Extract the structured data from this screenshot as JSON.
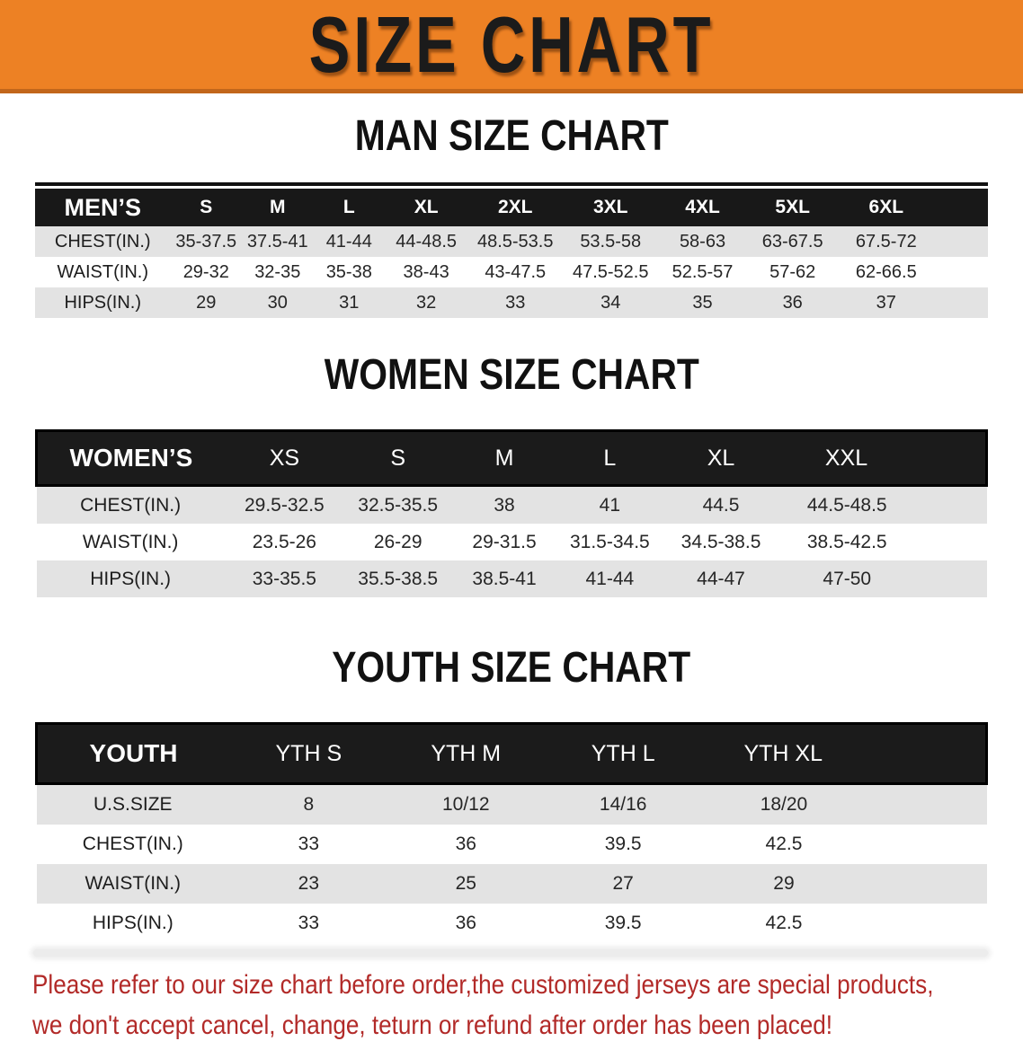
{
  "banner": {
    "title": "SIZE CHART"
  },
  "sections": [
    {
      "heading": "MAN SIZE CHART",
      "table": {
        "label": "MEN’S",
        "columns": [
          "S",
          "M",
          "L",
          "XL",
          "2XL",
          "3XL",
          "4XL",
          "5XL",
          "6XL"
        ],
        "rows": [
          {
            "label": "CHEST(IN.)",
            "values": [
              "35-37.5",
              "37.5-41",
              "41-44",
              "44-48.5",
              "48.5-53.5",
              "53.5-58",
              "58-63",
              "63-67.5",
              "67.5-72"
            ]
          },
          {
            "label": "WAIST(IN.)",
            "values": [
              "29-32",
              "32-35",
              "35-38",
              "38-43",
              "43-47.5",
              "47.5-52.5",
              "52.5-57",
              "57-62",
              "62-66.5"
            ]
          },
          {
            "label": "HIPS(IN.)",
            "values": [
              "29",
              "30",
              "31",
              "32",
              "33",
              "34",
              "35",
              "36",
              "37"
            ]
          }
        ]
      }
    },
    {
      "heading": "WOMEN SIZE CHART",
      "table": {
        "label": "WOMEN’S",
        "columns": [
          "XS",
          "S",
          "M",
          "L",
          "XL",
          "XXL"
        ],
        "rows": [
          {
            "label": "CHEST(IN.)",
            "values": [
              "29.5-32.5",
              "32.5-35.5",
              "38",
              "41",
              "44.5",
              "44.5-48.5"
            ]
          },
          {
            "label": "WAIST(IN.)",
            "values": [
              "23.5-26",
              "26-29",
              "29-31.5",
              "31.5-34.5",
              "34.5-38.5",
              "38.5-42.5"
            ]
          },
          {
            "label": "HIPS(IN.)",
            "values": [
              "33-35.5",
              "35.5-38.5",
              "38.5-41",
              "41-44",
              "44-47",
              "47-50"
            ]
          }
        ]
      }
    },
    {
      "heading": "YOUTH SIZE CHART",
      "table": {
        "label": "YOUTH",
        "columns": [
          "YTH S",
          "YTH M",
          "YTH L",
          "YTH XL"
        ],
        "rows": [
          {
            "label": "U.S.SIZE",
            "values": [
              "8",
              "10/12",
              "14/16",
              "18/20"
            ]
          },
          {
            "label": "CHEST(IN.)",
            "values": [
              "33",
              "36",
              "39.5",
              "42.5"
            ]
          },
          {
            "label": "WAIST(IN.)",
            "values": [
              "23",
              "25",
              "27",
              "29"
            ]
          },
          {
            "label": "HIPS(IN.)",
            "values": [
              "33",
              "36",
              "39.5",
              "42.5"
            ]
          }
        ]
      }
    }
  ],
  "footer": {
    "line1": "Please refer to our size chart before order,the customized jerseys are special products,",
    "line2": "we don't accept cancel, change, teturn or refund after order has been placed!"
  },
  "colors": {
    "banner_orange": "#ED8124",
    "banner_border": "#C2661B",
    "header_black": "#181818",
    "row_gray": "#E3E3E3",
    "footer_red": "#B22A28"
  }
}
